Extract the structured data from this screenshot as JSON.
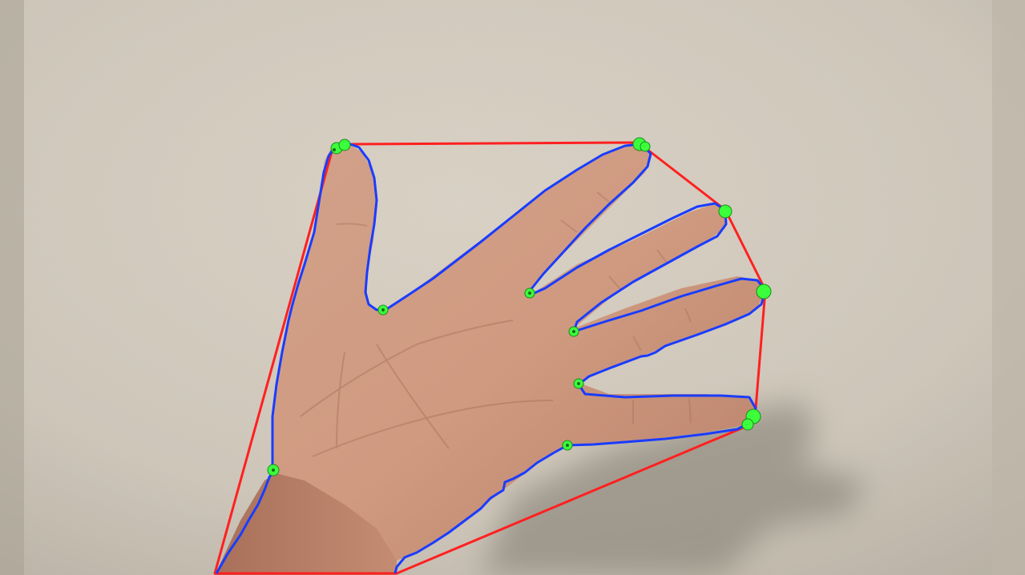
{
  "image": {
    "subject": "hand-contour-detection",
    "colors": {
      "wall_light": "#d8d0c3",
      "wall_mid": "#c9c0b2",
      "wall_dark": "#a9a295",
      "shadow": "#8f897e",
      "skin_light": "#d7a88f",
      "skin_mid": "#c98f73",
      "skin_dark": "#a9705a",
      "contour": "#1a3cff",
      "hull": "#ff2020",
      "keypoint": "#3cff3c"
    }
  }
}
